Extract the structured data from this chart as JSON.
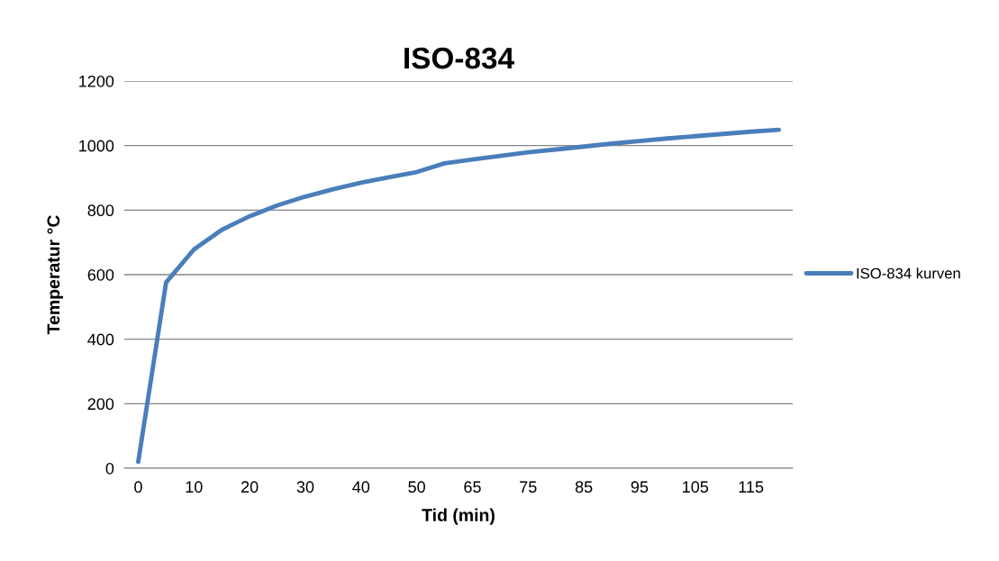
{
  "chart_data": {
    "type": "line",
    "title": "ISO-834",
    "xlabel": "Tid (min)",
    "ylabel": "Temperatur °C",
    "categories": [
      "0",
      null,
      "10",
      null,
      "20",
      null,
      "30",
      null,
      "40",
      null,
      "50",
      null,
      "65",
      null,
      "75",
      null,
      "85",
      null,
      "95",
      null,
      "105",
      null,
      "115",
      null
    ],
    "series": [
      {
        "name": "ISO-834 kurven",
        "color": "#4a7ebb",
        "values": [
          20,
          576,
          678,
          739,
          781,
          815,
          842,
          865,
          885,
          902,
          918,
          945,
          957,
          968,
          979,
          988,
          997,
          1006,
          1014,
          1022,
          1029,
          1036,
          1043,
          1049
        ]
      }
    ],
    "ylim": [
      0,
      1200
    ],
    "yticks": [
      0,
      200,
      400,
      600,
      800,
      1000,
      1200
    ],
    "grid": "y",
    "legend": "right",
    "marker": "none",
    "line_style": "solid"
  }
}
